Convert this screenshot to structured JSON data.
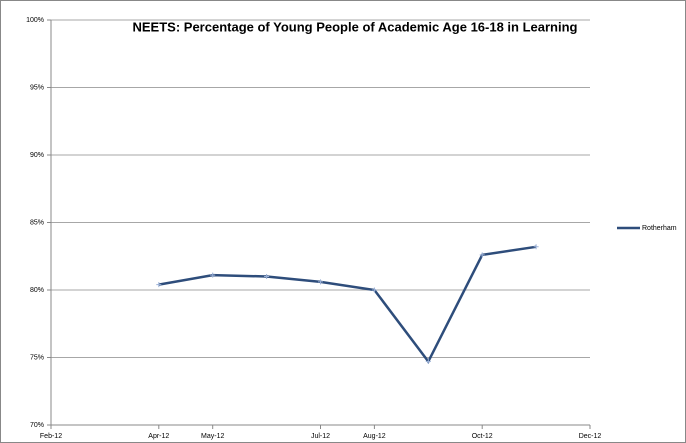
{
  "chart_data": {
    "type": "line",
    "title": "NEETS: Percentage of Young People  of Academic Age 16-18 in Learning",
    "x": [
      "2012-04",
      "2012-05",
      "2012-06",
      "2012-07",
      "2012-08",
      "2012-09",
      "2012-10",
      "2012-11"
    ],
    "series": [
      {
        "name": "Rotherham",
        "color": "#2e4d7b",
        "values": [
          80.4,
          81.1,
          81.0,
          80.6,
          80.0,
          74.7,
          82.6,
          83.2
        ]
      }
    ],
    "xlim": [
      "2012-02",
      "2012-12"
    ],
    "xticks": [
      {
        "value": "2012-02",
        "label": "Feb-12"
      },
      {
        "value": "2012-04",
        "label": "Apr-12"
      },
      {
        "value": "2012-05",
        "label": "May-12"
      },
      {
        "value": "2012-07",
        "label": "Jul-12"
      },
      {
        "value": "2012-08",
        "label": "Aug-12"
      },
      {
        "value": "2012-10",
        "label": "Oct-12"
      },
      {
        "value": "2012-12",
        "label": "Dec-12"
      }
    ],
    "ylim": [
      70,
      100
    ],
    "yticks": [
      {
        "value": 70,
        "label": "70%"
      },
      {
        "value": 75,
        "label": "75%"
      },
      {
        "value": 80,
        "label": "80%"
      },
      {
        "value": 85,
        "label": "85%"
      },
      {
        "value": 90,
        "label": "90%"
      },
      {
        "value": 95,
        "label": "95%"
      },
      {
        "value": 100,
        "label": "100%"
      }
    ],
    "grid": true,
    "legend": "right"
  }
}
